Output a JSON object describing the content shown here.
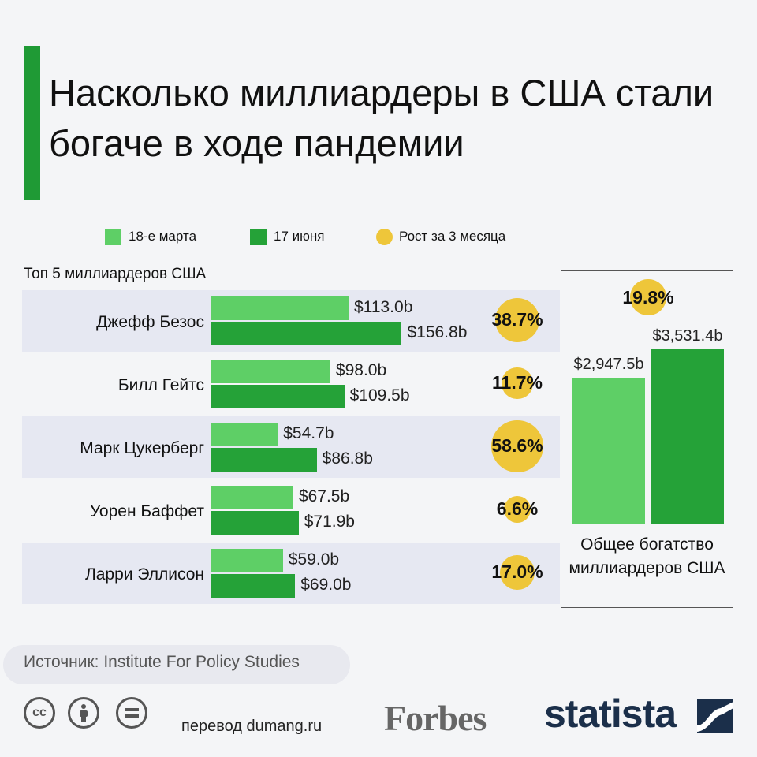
{
  "title": "Насколько миллиардеры в США стали богаче в ходе пандемии",
  "legend": [
    {
      "label": "18-е марта",
      "color": "#5ecf66"
    },
    {
      "label": "17 июня",
      "color": "#25a238"
    },
    {
      "label": "Рост за 3 месяца",
      "color": "#eec63a"
    }
  ],
  "subtitle": "Топ 5 миллиардеров США",
  "chart_data": [
    {
      "type": "bar",
      "orientation": "horizontal",
      "categories": [
        "Джефф Безос",
        "Билл Гейтс",
        "Марк Цукерберг",
        "Уорен Баффет",
        "Ларри Эллисон"
      ],
      "series": [
        {
          "name": "18-е марта",
          "values": [
            113.0,
            98.0,
            54.7,
            67.5,
            59.0
          ],
          "labels": [
            "$113.0b",
            "$98.0b",
            "$54.7b",
            "$67.5b",
            "$59.0b"
          ],
          "color": "#5ecf66"
        },
        {
          "name": "17 июня",
          "values": [
            156.8,
            109.5,
            86.8,
            71.9,
            69.0
          ],
          "labels": [
            "$156.8b",
            "$109.5b",
            "$86.8b",
            "$71.9b",
            "$69.0b"
          ],
          "color": "#25a238"
        }
      ],
      "growth": {
        "name": "Рост за 3 месяца",
        "values": [
          38.7,
          11.7,
          58.6,
          6.6,
          17.0
        ],
        "labels": [
          "38.7%",
          "11.7%",
          "58.6%",
          "6.6%",
          "17.0%"
        ],
        "color": "#eec63a"
      }
    },
    {
      "type": "bar",
      "categories": [
        "18-е марта",
        "17 июня"
      ],
      "values": [
        2947.5,
        3531.4
      ],
      "value_labels": [
        "$2,947.5b",
        "$3,531.4b"
      ],
      "colors": [
        "#5ecf66",
        "#25a238"
      ],
      "growth": {
        "value": 19.8,
        "label": "19.8%"
      },
      "xlabel": "Общее богатство миллиардеров США"
    }
  ],
  "source": "Источник: Institute For Policy Studies",
  "license_icons": [
    "cc-icon",
    "attribution-icon",
    "no-derivatives-icon"
  ],
  "translator": "перевод dumang.ru",
  "logos": {
    "forbes": "Forbes",
    "statista": "statista"
  }
}
